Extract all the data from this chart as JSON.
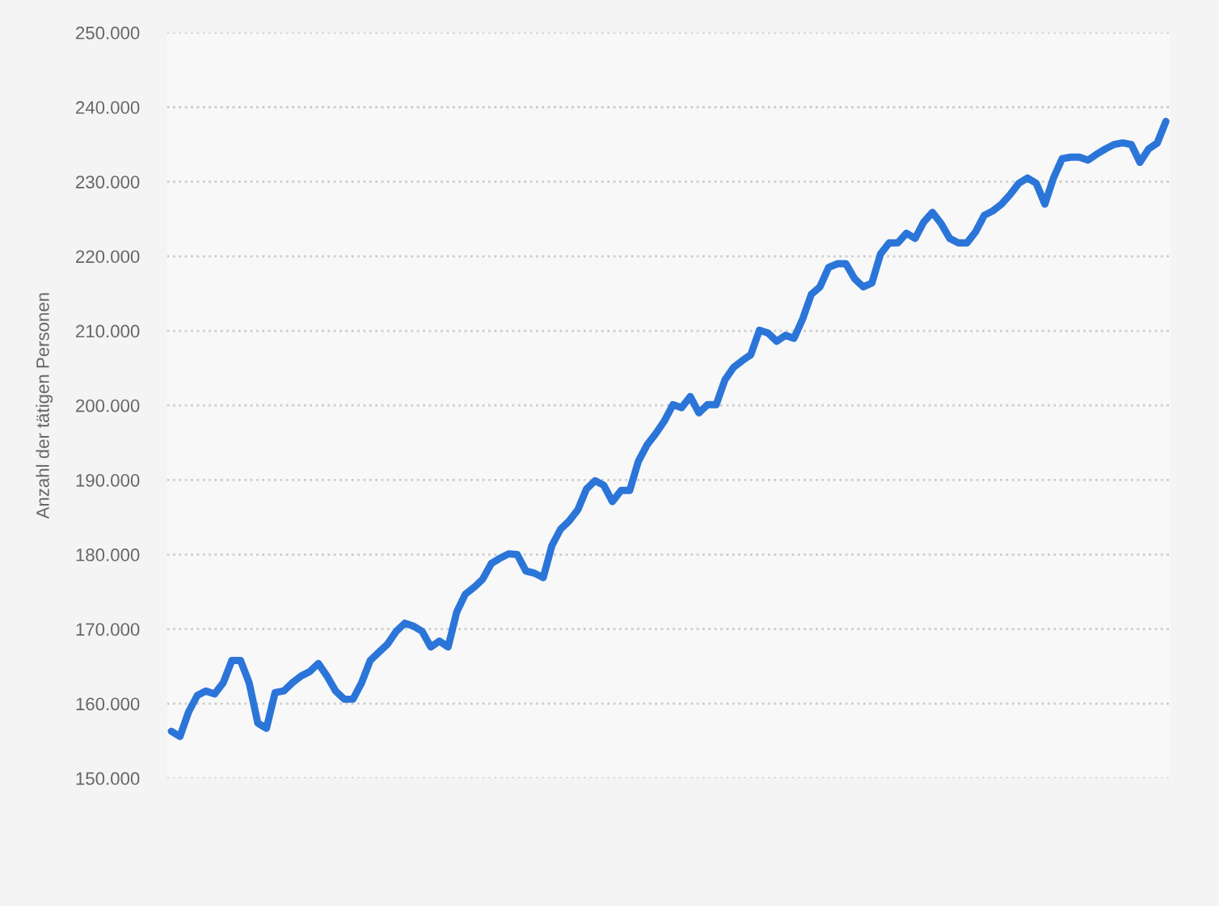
{
  "chart_data": {
    "type": "line",
    "ylabel": "Anzahl der tätigen Personen",
    "categories": [
      null,
      null,
      null,
      null,
      null,
      null,
      null,
      null,
      null,
      null,
      null,
      null,
      null,
      null,
      null,
      null,
      null,
      null,
      null,
      null,
      null,
      null,
      null,
      null,
      null,
      null,
      null,
      null,
      null,
      null,
      null,
      null,
      null,
      null,
      null,
      null,
      null,
      null,
      null,
      null,
      null,
      null,
      null,
      null,
      null,
      null,
      null,
      null,
      null,
      null,
      null,
      null,
      null,
      null,
      null,
      null,
      null,
      null,
      null,
      null,
      null,
      null,
      null,
      null,
      null,
      null,
      null,
      null,
      null,
      null,
      null,
      null,
      null,
      null,
      null,
      null,
      null,
      null,
      null,
      null,
      null,
      null,
      null,
      null,
      null,
      null,
      null,
      null,
      null,
      null,
      null,
      null,
      null,
      null,
      null,
      null,
      null,
      null,
      null,
      null,
      null,
      null,
      null,
      null,
      null,
      null,
      null,
      null,
      null,
      null,
      null,
      null,
      null,
      null,
      null,
      null
    ],
    "series": [
      {
        "color": "#2b75d9",
        "values": [
          156300,
          155600,
          158900,
          161100,
          161700,
          161300,
          162800,
          165800,
          165800,
          162800,
          157400,
          156700,
          161500,
          161700,
          162800,
          163700,
          164300,
          165400,
          163700,
          161700,
          160600,
          160600,
          162800,
          165800,
          166900,
          168000,
          169700,
          170800,
          170400,
          169700,
          167600,
          168400,
          167600,
          172300,
          174700,
          175600,
          176700,
          178800,
          179500,
          180100,
          180000,
          177800,
          177500,
          176900,
          181200,
          183400,
          184500,
          186000,
          188800,
          189900,
          189300,
          187100,
          188600,
          188600,
          192500,
          194700,
          196200,
          197900,
          200100,
          199700,
          201200,
          199000,
          200100,
          200100,
          203400,
          205100,
          206000,
          206800,
          210100,
          209700,
          208600,
          209400,
          209000,
          211600,
          214900,
          215900,
          218500,
          219000,
          219000,
          217000,
          215900,
          216400,
          220300,
          221800,
          221800,
          223100,
          222400,
          224600,
          225900,
          224400,
          222400,
          221800,
          221800,
          223300,
          225500,
          226100,
          227000,
          228300,
          229800,
          230500,
          229800,
          227000,
          230500,
          233100,
          233300,
          233300,
          232900,
          233700,
          234400,
          235000,
          235200,
          235000,
          232600,
          234400,
          235200,
          238100
        ]
      }
    ],
    "ylim": [
      150000,
      250000
    ],
    "yticks": [
      {
        "value": 150000,
        "label": "150.000"
      },
      {
        "value": 160000,
        "label": "160.000"
      },
      {
        "value": 170000,
        "label": "170.000"
      },
      {
        "value": 180000,
        "label": "180.000"
      },
      {
        "value": 190000,
        "label": "190.000"
      },
      {
        "value": 200000,
        "label": "200.000"
      },
      {
        "value": 210000,
        "label": "210.000"
      },
      {
        "value": 220000,
        "label": "220.000"
      },
      {
        "value": 230000,
        "label": "230.000"
      },
      {
        "value": 240000,
        "label": "240.000"
      },
      {
        "value": 250000,
        "label": "250.000"
      }
    ],
    "grid": "y",
    "tick_labels": "y",
    "marker": "none",
    "line_style": "solid"
  }
}
